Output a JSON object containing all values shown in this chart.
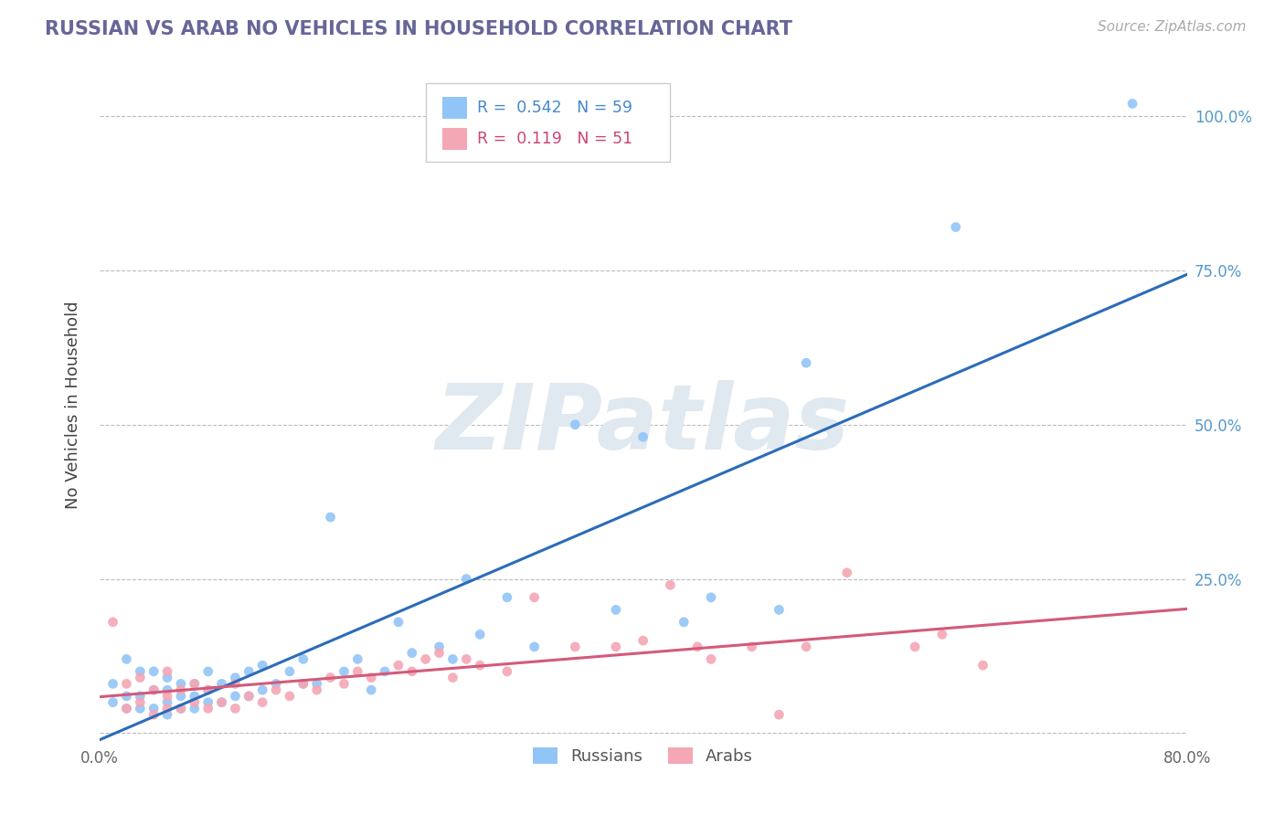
{
  "title": "RUSSIAN VS ARAB NO VEHICLES IN HOUSEHOLD CORRELATION CHART",
  "source_text": "Source: ZipAtlas.com",
  "ylabel": "No Vehicles in Household",
  "xlim": [
    0.0,
    0.8
  ],
  "ylim": [
    -0.015,
    1.08
  ],
  "russian_color": "#92c5f7",
  "arab_color": "#f4a7b5",
  "russian_line_color": "#2b6cb8",
  "arab_line_color": "#d45a7a",
  "legend_r_russian": "0.542",
  "legend_n_russian": "59",
  "legend_r_arab": "0.119",
  "legend_n_arab": "51",
  "watermark": "ZIPatlas",
  "watermark_color": "#e0e8f0",
  "background_color": "#ffffff",
  "grid_color": "#bbbbbb",
  "title_color": "#666699",
  "russian_scatter_x": [
    0.01,
    0.01,
    0.02,
    0.02,
    0.02,
    0.03,
    0.03,
    0.03,
    0.04,
    0.04,
    0.04,
    0.05,
    0.05,
    0.05,
    0.05,
    0.06,
    0.06,
    0.06,
    0.07,
    0.07,
    0.07,
    0.08,
    0.08,
    0.08,
    0.09,
    0.09,
    0.1,
    0.1,
    0.11,
    0.11,
    0.12,
    0.12,
    0.13,
    0.14,
    0.15,
    0.15,
    0.16,
    0.17,
    0.18,
    0.19,
    0.2,
    0.21,
    0.22,
    0.23,
    0.25,
    0.26,
    0.27,
    0.28,
    0.3,
    0.32,
    0.35,
    0.38,
    0.4,
    0.43,
    0.45,
    0.5,
    0.52,
    0.63,
    0.76
  ],
  "russian_scatter_y": [
    0.05,
    0.08,
    0.04,
    0.06,
    0.12,
    0.04,
    0.06,
    0.1,
    0.04,
    0.07,
    0.1,
    0.03,
    0.05,
    0.07,
    0.09,
    0.04,
    0.06,
    0.08,
    0.04,
    0.06,
    0.08,
    0.05,
    0.07,
    0.1,
    0.05,
    0.08,
    0.06,
    0.09,
    0.06,
    0.1,
    0.07,
    0.11,
    0.08,
    0.1,
    0.08,
    0.12,
    0.08,
    0.35,
    0.1,
    0.12,
    0.07,
    0.1,
    0.18,
    0.13,
    0.14,
    0.12,
    0.25,
    0.16,
    0.22,
    0.14,
    0.5,
    0.2,
    0.48,
    0.18,
    0.22,
    0.2,
    0.6,
    0.82,
    1.02
  ],
  "arab_scatter_x": [
    0.01,
    0.02,
    0.02,
    0.03,
    0.03,
    0.04,
    0.04,
    0.05,
    0.05,
    0.05,
    0.06,
    0.06,
    0.07,
    0.07,
    0.08,
    0.08,
    0.09,
    0.1,
    0.1,
    0.11,
    0.12,
    0.13,
    0.14,
    0.15,
    0.16,
    0.17,
    0.18,
    0.19,
    0.2,
    0.22,
    0.23,
    0.24,
    0.25,
    0.26,
    0.27,
    0.28,
    0.3,
    0.32,
    0.35,
    0.38,
    0.4,
    0.42,
    0.44,
    0.45,
    0.48,
    0.5,
    0.52,
    0.55,
    0.6,
    0.62,
    0.65
  ],
  "arab_scatter_y": [
    0.18,
    0.04,
    0.08,
    0.05,
    0.09,
    0.03,
    0.07,
    0.04,
    0.06,
    0.1,
    0.04,
    0.07,
    0.05,
    0.08,
    0.04,
    0.07,
    0.05,
    0.04,
    0.08,
    0.06,
    0.05,
    0.07,
    0.06,
    0.08,
    0.07,
    0.09,
    0.08,
    0.1,
    0.09,
    0.11,
    0.1,
    0.12,
    0.13,
    0.09,
    0.12,
    0.11,
    0.1,
    0.22,
    0.14,
    0.14,
    0.15,
    0.24,
    0.14,
    0.12,
    0.14,
    0.03,
    0.14,
    0.26,
    0.14,
    0.16,
    0.11
  ]
}
